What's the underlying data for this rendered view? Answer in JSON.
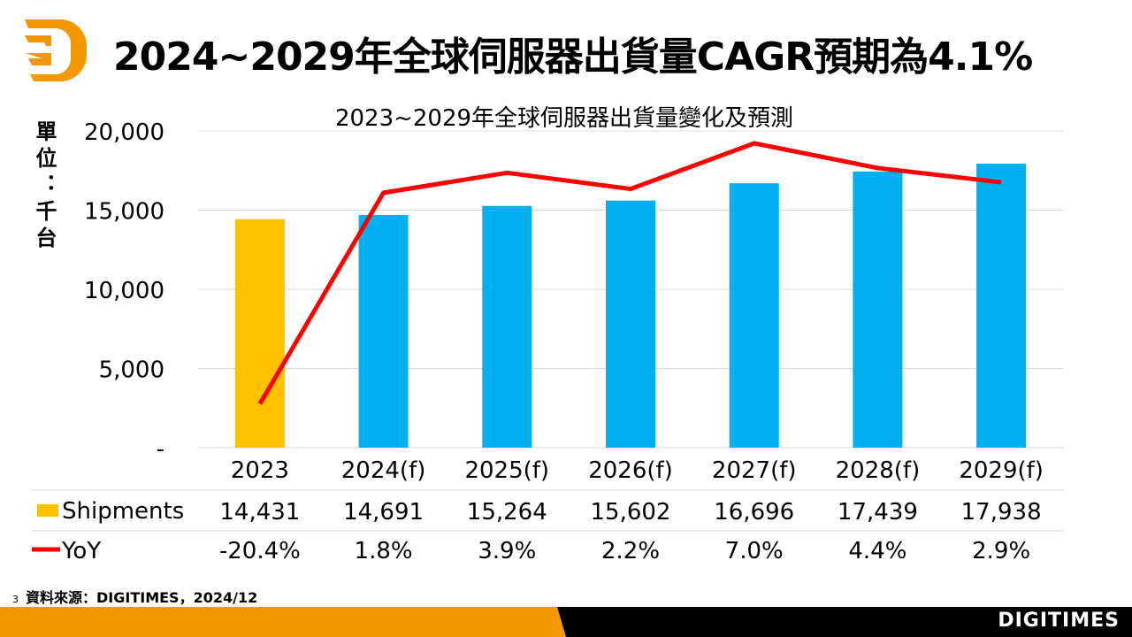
{
  "header": {
    "title": "2024~2029年全球伺服器出貨量CAGR預期為4.1%",
    "logo": "DIGITIMES"
  },
  "footer": {
    "page_number": "3",
    "source": "資料來源：DIGITIMES，2024/12",
    "brand": "DIGITIMES"
  },
  "colors": {
    "actual": "#FFC000",
    "forecast": "#00B0F0",
    "yoy": "#FF0000",
    "brand_orange": "#F39800"
  },
  "chart_data": {
    "type": "bar+line",
    "title": "2023~2029年全球伺服器出貨量變化及預測",
    "ylabel": "單位：千台",
    "ylim": [
      0,
      20000
    ],
    "yticks": [
      "-",
      "5,000",
      "10,000",
      "15,000",
      "20,000"
    ],
    "y2lim": [
      -25,
      8.3
    ],
    "grid": true,
    "categories": [
      "2023",
      "2024(f)",
      "2025(f)",
      "2026(f)",
      "2027(f)",
      "2028(f)",
      "2029(f)"
    ],
    "series": [
      {
        "name": "Shipments",
        "type": "bar",
        "values": [
          14431,
          14691,
          15264,
          15602,
          16696,
          17439,
          17938
        ],
        "labels": [
          "14,431",
          "14,691",
          "15,264",
          "15,602",
          "16,696",
          "17,439",
          "17,938"
        ]
      },
      {
        "name": "YoY",
        "type": "line",
        "values": [
          -20.4,
          1.8,
          3.9,
          2.2,
          7.0,
          4.4,
          2.9
        ],
        "labels": [
          "-20.4%",
          "1.8%",
          "3.9%",
          "2.2%",
          "7.0%",
          "4.4%",
          "2.9%"
        ]
      }
    ]
  }
}
